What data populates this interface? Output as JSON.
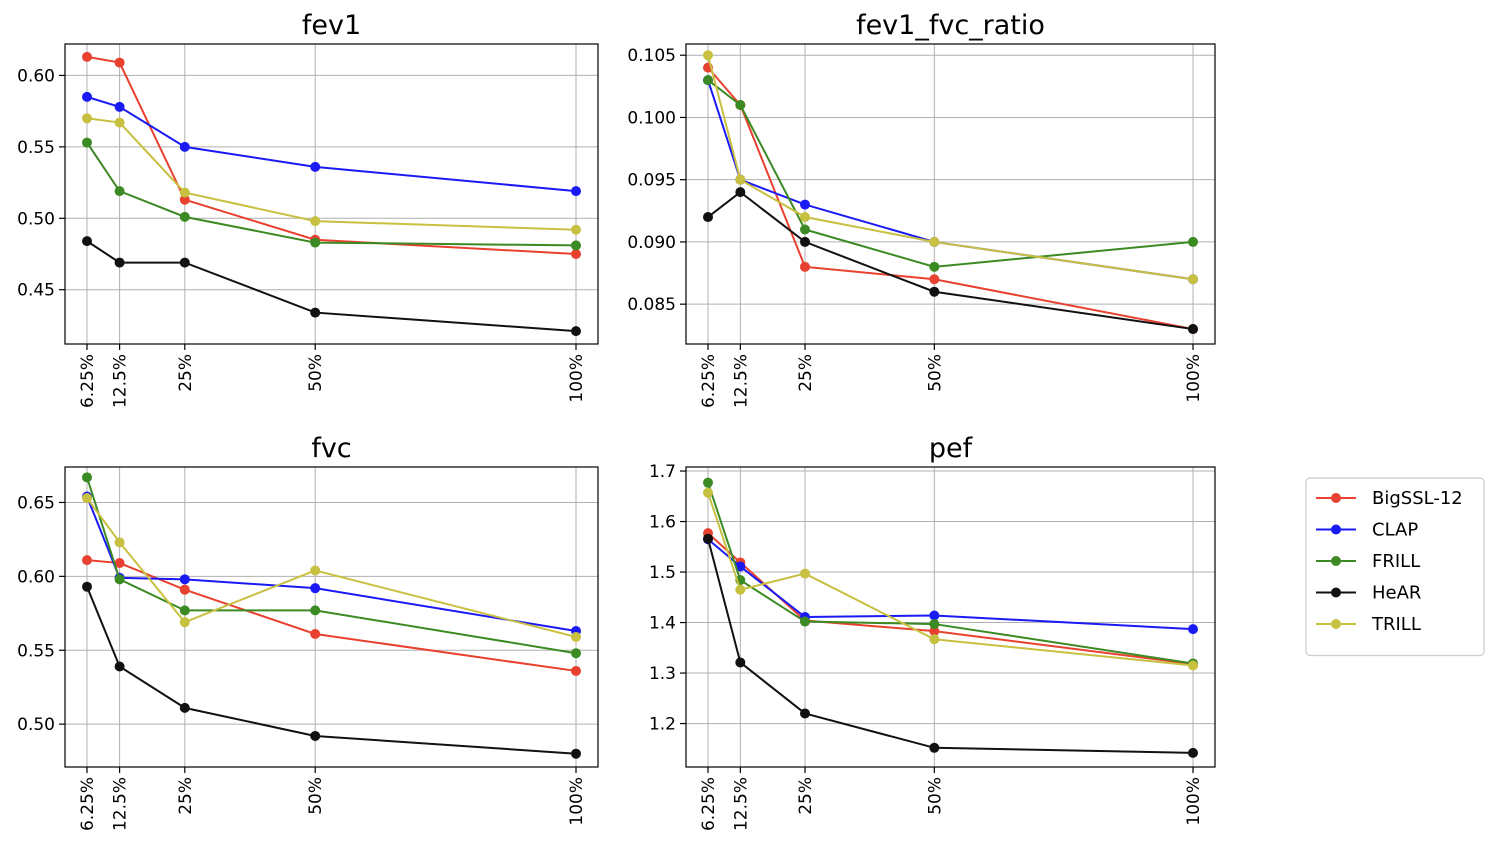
{
  "chart_data": [
    {
      "type": "line",
      "title": "fev1",
      "categories": [
        "6.25%",
        "12.5%",
        "25%",
        "50%",
        "100%"
      ],
      "x": [
        6.25,
        12.5,
        25,
        50,
        100
      ],
      "ylim": [
        0.412,
        0.622
      ],
      "yticks": [
        0.45,
        0.5,
        0.55,
        0.6
      ],
      "ytick_labels": [
        "0.45",
        "0.50",
        "0.55",
        "0.60"
      ],
      "grid": true,
      "series": [
        {
          "name": "BigSSL-12",
          "values": [
            0.613,
            0.609,
            0.513,
            0.485,
            0.475
          ]
        },
        {
          "name": "CLAP",
          "values": [
            0.585,
            0.578,
            0.55,
            0.536,
            0.519
          ]
        },
        {
          "name": "FRILL",
          "values": [
            0.553,
            0.519,
            0.501,
            0.483,
            0.481
          ]
        },
        {
          "name": "HeAR",
          "values": [
            0.484,
            0.469,
            0.469,
            0.434,
            0.421
          ]
        },
        {
          "name": "TRILL",
          "values": [
            0.57,
            0.567,
            0.518,
            0.498,
            0.492
          ]
        }
      ]
    },
    {
      "type": "line",
      "title": "fev1_fvc_ratio",
      "categories": [
        "6.25%",
        "12.5%",
        "25%",
        "50%",
        "100%"
      ],
      "x": [
        6.25,
        12.5,
        25,
        50,
        100
      ],
      "ylim": [
        0.0818,
        0.1059
      ],
      "yticks": [
        0.085,
        0.09,
        0.095,
        0.1,
        0.105
      ],
      "ytick_labels": [
        "0.085",
        "0.090",
        "0.095",
        "0.100",
        "0.105"
      ],
      "grid": true,
      "series": [
        {
          "name": "BigSSL-12",
          "values": [
            0.104,
            0.101,
            0.088,
            0.087,
            0.083
          ]
        },
        {
          "name": "CLAP",
          "values": [
            0.103,
            0.095,
            0.093,
            0.09,
            0.087
          ]
        },
        {
          "name": "FRILL",
          "values": [
            0.103,
            0.101,
            0.091,
            0.088,
            0.09
          ]
        },
        {
          "name": "HeAR",
          "values": [
            0.092,
            0.094,
            0.09,
            0.086,
            0.083
          ]
        },
        {
          "name": "TRILL",
          "values": [
            0.105,
            0.095,
            0.092,
            0.09,
            0.087
          ]
        }
      ]
    },
    {
      "type": "line",
      "title": "fvc",
      "categories": [
        "6.25%",
        "12.5%",
        "25%",
        "50%",
        "100%"
      ],
      "x": [
        6.25,
        12.5,
        25,
        50,
        100
      ],
      "ylim": [
        0.471,
        0.674
      ],
      "yticks": [
        0.5,
        0.55,
        0.6,
        0.65
      ],
      "ytick_labels": [
        "0.50",
        "0.55",
        "0.60",
        "0.65"
      ],
      "grid": true,
      "series": [
        {
          "name": "BigSSL-12",
          "values": [
            0.611,
            0.609,
            0.591,
            0.561,
            0.536
          ]
        },
        {
          "name": "CLAP",
          "values": [
            0.654,
            0.599,
            0.598,
            0.592,
            0.563
          ]
        },
        {
          "name": "FRILL",
          "values": [
            0.667,
            0.598,
            0.577,
            0.577,
            0.548
          ]
        },
        {
          "name": "HeAR",
          "values": [
            0.593,
            0.539,
            0.511,
            0.492,
            0.48
          ]
        },
        {
          "name": "TRILL",
          "values": [
            0.653,
            0.623,
            0.569,
            0.604,
            0.559
          ]
        }
      ]
    },
    {
      "type": "line",
      "title": "pef",
      "categories": [
        "6.25%",
        "12.5%",
        "25%",
        "50%",
        "100%"
      ],
      "x": [
        6.25,
        12.5,
        25,
        50,
        100
      ],
      "ylim": [
        1.114,
        1.708
      ],
      "yticks": [
        1.2,
        1.3,
        1.4,
        1.5,
        1.6,
        1.7
      ],
      "ytick_labels": [
        "1.2",
        "1.3",
        "1.4",
        "1.5",
        "1.6",
        "1.7"
      ],
      "grid": true,
      "series": [
        {
          "name": "BigSSL-12",
          "values": [
            1.577,
            1.519,
            1.404,
            1.383,
            1.318
          ]
        },
        {
          "name": "CLAP",
          "values": [
            1.565,
            1.511,
            1.411,
            1.414,
            1.387
          ]
        },
        {
          "name": "FRILL",
          "values": [
            1.677,
            1.484,
            1.402,
            1.397,
            1.319
          ]
        },
        {
          "name": "HeAR",
          "values": [
            1.566,
            1.321,
            1.22,
            1.152,
            1.142
          ]
        },
        {
          "name": "TRILL",
          "values": [
            1.657,
            1.465,
            1.497,
            1.367,
            1.315
          ]
        }
      ]
    }
  ],
  "legend": {
    "position": "right",
    "entries": [
      {
        "name": "BigSSL-12",
        "color": "#e8412f"
      },
      {
        "name": "CLAP",
        "color": "#1a1af5"
      },
      {
        "name": "FRILL",
        "color": "#3c8a23"
      },
      {
        "name": "HeAR",
        "color": "#111111"
      },
      {
        "name": "TRILL",
        "color": "#c8c040"
      }
    ]
  }
}
